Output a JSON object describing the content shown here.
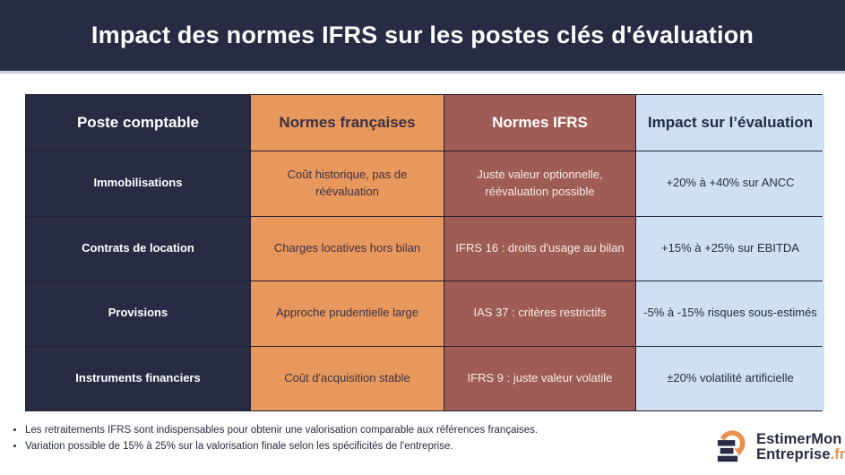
{
  "banner": {
    "title": "Impact des normes IFRS sur les postes clés d'évaluation"
  },
  "table": {
    "headers": [
      "Poste comptable",
      "Normes françaises",
      "Normes IFRS",
      "Impact sur l’évaluation"
    ],
    "rows": [
      {
        "poste": "Immobilisations",
        "fr": "Coût historique, pas de réévaluation",
        "ifrs": "Juste valeur optionnelle, réévaluation possible",
        "impact": "+20% à +40% sur ANCC"
      },
      {
        "poste": "Contrats de location",
        "fr": "Charges locatives hors bilan",
        "ifrs": "IFRS 16 : droits d'usage au bilan",
        "impact": "+15% à +25% sur EBITDA"
      },
      {
        "poste": "Provisions",
        "fr": "Approche prudentielle large",
        "ifrs": "IAS 37 : critères restrictifs",
        "impact": "-5% à -15% risques sous-estimés"
      },
      {
        "poste": "Instruments financiers",
        "fr": "Coût d'acquisition stable",
        "ifrs": "IFRS 9 : juste valeur volatile",
        "impact": "±20% volatilité artificielle"
      }
    ]
  },
  "footnotes": [
    "Les retraitements IFRS sont indispensables pour obtenir une valorisation comparable aux références françaises.",
    "Variation possible de 15% à 25% sur la valorisation finale selon les spécificités de l'entreprise."
  ],
  "logo": {
    "line1": "EstimerMon",
    "line2": "Entreprise",
    "tld": ".fr"
  },
  "colors": {
    "navy": "#272c44",
    "orange": "#e8985c",
    "brick": "#9e5c54",
    "light_blue": "#cfe0f5",
    "logo_orange": "#e8914e"
  },
  "chart_data": {
    "type": "table",
    "title": "Impact des normes IFRS sur les postes clés d'évaluation",
    "columns": [
      "Poste comptable",
      "Normes françaises",
      "Normes IFRS",
      "Impact sur l’évaluation"
    ],
    "rows": [
      [
        "Immobilisations",
        "Coût historique, pas de réévaluation",
        "Juste valeur optionnelle, réévaluation possible",
        "+20% à +40% sur ANCC"
      ],
      [
        "Contrats de location",
        "Charges locatives hors bilan",
        "IFRS 16 : droits d'usage au bilan",
        "+15% à +25% sur EBITDA"
      ],
      [
        "Provisions",
        "Approche prudentielle large",
        "IAS 37 : critères restrictifs",
        "-5% à -15% risques sous-estimés"
      ],
      [
        "Instruments financiers",
        "Coût d'acquisition stable",
        "IFRS 9 : juste valeur volatile",
        "±20% volatilité artificielle"
      ]
    ]
  }
}
